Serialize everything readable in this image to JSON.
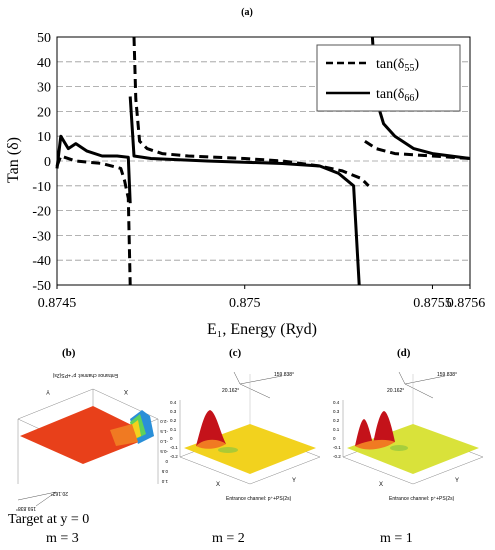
{
  "chart_data": {
    "type": "line",
    "panel_label": "(a)",
    "xlabel": "E₁, Energy (Ryd)",
    "ylabel": "Tan (δ)",
    "xlim": [
      0.8745,
      0.8756
    ],
    "ylim": [
      -50,
      50
    ],
    "x_ticks": [
      "0.8745",
      "0.875",
      "0.8755",
      "0.8756"
    ],
    "y_ticks": [
      "50",
      "40",
      "30",
      "20",
      "10",
      "0",
      "-10",
      "-20",
      "-30",
      "-40",
      "-50"
    ],
    "grid": "horizontal dashed",
    "legend": "top-right",
    "series": [
      {
        "name": "tan(δ55)",
        "style": "dashed",
        "segments": [
          [
            [
              0.8745,
              -2
            ],
            [
              0.87451,
              2
            ],
            [
              0.87455,
              0
            ],
            [
              0.87462,
              -1
            ],
            [
              0.87467,
              -3
            ],
            [
              0.87468,
              -8
            ],
            [
              0.87469,
              -15
            ],
            [
              0.874695,
              -50
            ]
          ],
          [
            [
              0.874705,
              50
            ],
            [
              0.87471,
              25
            ],
            [
              0.87472,
              8
            ],
            [
              0.87474,
              5
            ],
            [
              0.87478,
              3
            ],
            [
              0.87485,
              2
            ],
            [
              0.875,
              1
            ],
            [
              0.8751,
              0
            ],
            [
              0.8752,
              -2
            ],
            [
              0.87526,
              -4
            ],
            [
              0.87531,
              -7
            ],
            [
              0.87533,
              -10
            ]
          ],
          [
            [
              0.87532,
              8
            ],
            [
              0.87535,
              5
            ],
            [
              0.8754,
              3
            ],
            [
              0.8755,
              2
            ],
            [
              0.8756,
              1
            ]
          ]
        ]
      },
      {
        "name": "tan(δ66)",
        "style": "solid",
        "segments": [
          [
            [
              0.8745,
              -3
            ],
            [
              0.87451,
              10
            ],
            [
              0.87453,
              5
            ],
            [
              0.87455,
              7
            ],
            [
              0.87458,
              4
            ],
            [
              0.87462,
              2
            ],
            [
              0.87466,
              2
            ],
            [
              0.87469,
              1.5
            ],
            [
              0.874695,
              -17
            ]
          ],
          [
            [
              0.874695,
              26
            ],
            [
              0.874705,
              2
            ],
            [
              0.87475,
              1
            ],
            [
              0.8749,
              0
            ],
            [
              0.8751,
              -1
            ],
            [
              0.8752,
              -2
            ],
            [
              0.87525,
              -5
            ],
            [
              0.87529,
              -10
            ],
            [
              0.875305,
              -50
            ]
          ],
          [
            [
              0.87534,
              50
            ],
            [
              0.87535,
              25
            ],
            [
              0.87537,
              15
            ],
            [
              0.8754,
              10
            ],
            [
              0.87545,
              5
            ],
            [
              0.8755,
              3
            ],
            [
              0.8756,
              1
            ]
          ]
        ]
      }
    ]
  },
  "subpanels": [
    {
      "label": "(b)",
      "caption": "Entrance channel: p⁺+PS(2s)",
      "axis_top": "20.162°",
      "axis_right": "159.838°",
      "z_ticks": [
        "1.0",
        "0.5",
        "0",
        "-0.5",
        "-1.0",
        "-1.5",
        "-2.0"
      ],
      "x_axis": "X",
      "y_axis": "Y"
    },
    {
      "label": "(c)",
      "caption": "Entrance channel: p⁺+PS(2s)",
      "axis_top": "20.162°",
      "axis_right": "159.838°",
      "z_ticks": [
        "0.4",
        "0.3",
        "0.2",
        "0.1",
        "0",
        "-0.1",
        "-0.2"
      ],
      "x_axis": "X",
      "y_axis": "Y"
    },
    {
      "label": "(d)",
      "caption": "Entrance channel: p⁺+PS(2s)",
      "axis_top": "20.162°",
      "axis_right": "159.838°",
      "z_ticks": [
        "0.4",
        "0.3",
        "0.2",
        "0.1",
        "0",
        "-0.1",
        "-0.2"
      ],
      "x_axis": "X",
      "y_axis": "Y"
    }
  ],
  "footer": {
    "target": "Target at y = 0",
    "m_labels": [
      "m = 3",
      "m = 2",
      "m = 1"
    ]
  },
  "colors": {
    "line": "#000000",
    "grid": "#9a9a9a",
    "surface_b": "#e8401a",
    "surface_c": "#f2d21e",
    "surface_d": "#d9e23a",
    "peak_red": "#c4121a"
  }
}
